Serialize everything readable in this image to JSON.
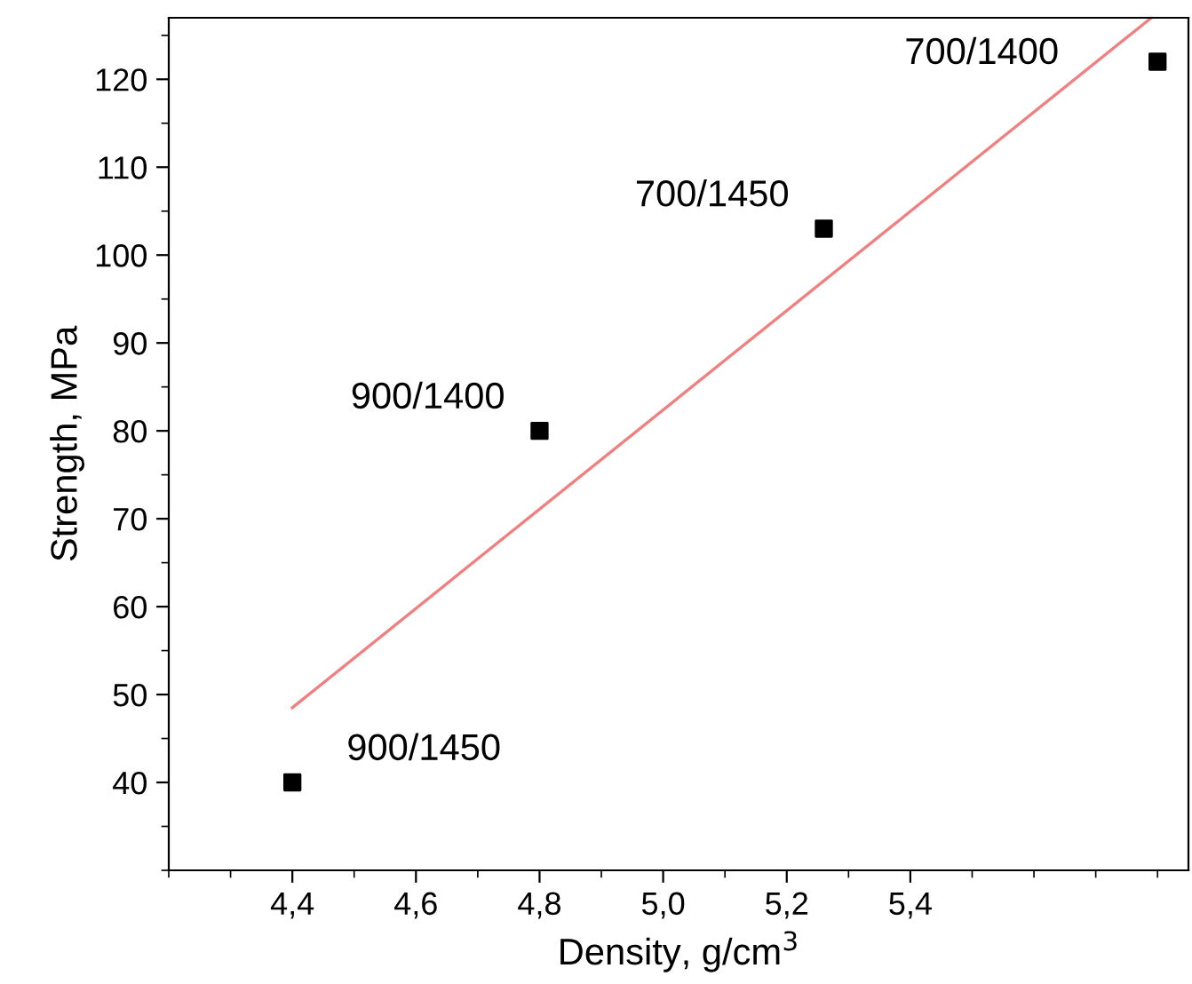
{
  "chart_data": {
    "type": "scatter",
    "xlabel": "Density, g/cm$^{3}$",
    "ylabel": "Strength, MPa",
    "x": [
      4.4,
      4.8,
      5.26,
      5.8
    ],
    "series": [
      {
        "color": "#000000",
        "marker": "square",
        "values": [
          40,
          80,
          103,
          122
        ]
      },
      {
        "type": "line",
        "color": "#f08080",
        "x": [
          4.4,
          5.79
        ],
        "values": [
          48.5,
          127
        ]
      }
    ],
    "annotations": [
      {
        "text": "900/1450",
        "x": 4.4,
        "y": 40
      },
      {
        "text": "900/1400",
        "x": 4.8,
        "y": 80
      },
      {
        "text": "700/1450",
        "x": 5.26,
        "y": 103
      },
      {
        "text": "700/1400",
        "x": 5.8,
        "y": 122
      }
    ],
    "xlim": [
      4.2,
      5.85
    ],
    "ylim": [
      30,
      127
    ],
    "xticks": [
      {
        "value": 4.4,
        "label": "4,4"
      },
      {
        "value": 4.6,
        "label": "4,6"
      },
      {
        "value": 4.8,
        "label": "4,8"
      },
      {
        "value": 5.0,
        "label": "5,0"
      },
      {
        "value": 5.2,
        "label": "5,2"
      },
      {
        "value": 5.4,
        "label": "5,4"
      }
    ],
    "yticks": [
      40,
      50,
      60,
      70,
      80,
      90,
      100,
      110,
      120
    ],
    "grid": false,
    "legend": false
  }
}
